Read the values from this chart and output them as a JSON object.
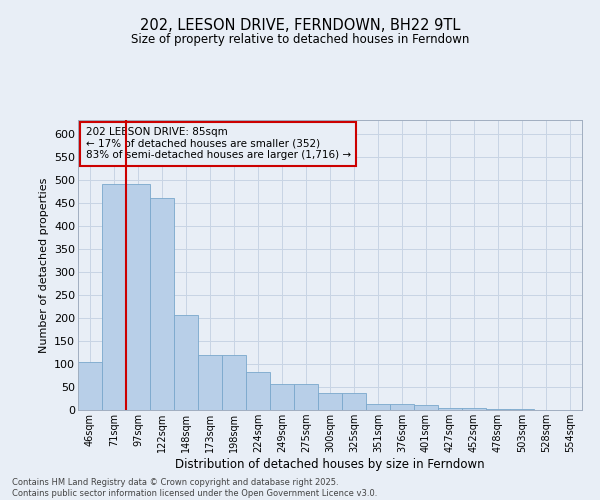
{
  "title": "202, LEESON DRIVE, FERNDOWN, BH22 9TL",
  "subtitle": "Size of property relative to detached houses in Ferndown",
  "xlabel": "Distribution of detached houses by size in Ferndown",
  "ylabel": "Number of detached properties",
  "categories": [
    "46sqm",
    "71sqm",
    "97sqm",
    "122sqm",
    "148sqm",
    "173sqm",
    "198sqm",
    "224sqm",
    "249sqm",
    "275sqm",
    "300sqm",
    "325sqm",
    "351sqm",
    "376sqm",
    "401sqm",
    "427sqm",
    "452sqm",
    "478sqm",
    "503sqm",
    "528sqm",
    "554sqm"
  ],
  "values": [
    105,
    492,
    492,
    460,
    207,
    120,
    120,
    82,
    57,
    57,
    38,
    38,
    13,
    13,
    10,
    5,
    5,
    2,
    2,
    0,
    0
  ],
  "bar_color": "#b8cfe8",
  "bar_edge_color": "#7aa8cc",
  "grid_color": "#c8d4e4",
  "background_color": "#e8eef6",
  "vline_color": "#cc0000",
  "vline_x_idx": 1.5,
  "annotation_text": "202 LEESON DRIVE: 85sqm\n← 17% of detached houses are smaller (352)\n83% of semi-detached houses are larger (1,716) →",
  "annotation_box_color": "#cc0000",
  "ylim": [
    0,
    630
  ],
  "yticks": [
    0,
    50,
    100,
    150,
    200,
    250,
    300,
    350,
    400,
    450,
    500,
    550,
    600
  ],
  "footer": "Contains HM Land Registry data © Crown copyright and database right 2025.\nContains public sector information licensed under the Open Government Licence v3.0.",
  "figsize": [
    6.0,
    5.0
  ],
  "dpi": 100
}
